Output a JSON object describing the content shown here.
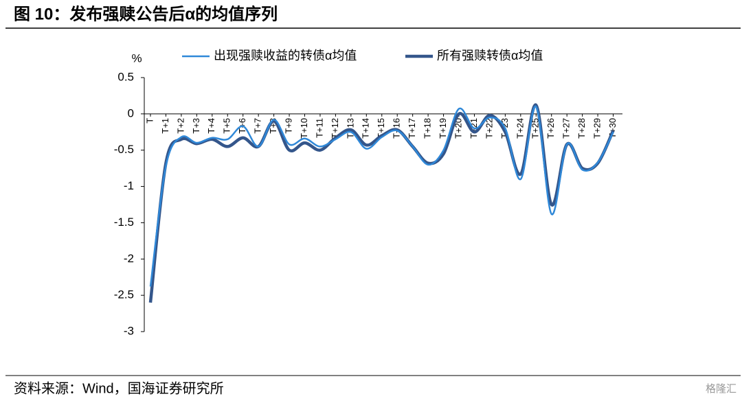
{
  "chart_data": {
    "type": "line",
    "title": "图 10：发布强赎公告后α的均值序列",
    "y_label": "%",
    "source": "资料来源：Wind，国海证券研究所",
    "watermark": "格隆汇",
    "categories": [
      "T",
      "T+1",
      "T+2",
      "T+3",
      "T+4",
      "T+5",
      "T+6",
      "T+7",
      "T+8",
      "T+9",
      "T+10",
      "T+11",
      "T+12",
      "T+13",
      "T+14",
      "T+15",
      "T+16",
      "T+17",
      "T+18",
      "T+19",
      "T+20",
      "T+21",
      "T+22",
      "T+23",
      "T+24",
      "T+25",
      "T+26",
      "T+27",
      "T+28",
      "T+29",
      "T+30"
    ],
    "series": [
      {
        "name": "出现强赎收益的转债α均值",
        "color": "#2f88d8",
        "values": [
          -2.38,
          -0.72,
          -0.32,
          -0.4,
          -0.33,
          -0.35,
          -0.17,
          -0.45,
          -0.08,
          -0.42,
          -0.34,
          -0.45,
          -0.35,
          -0.25,
          -0.48,
          -0.32,
          -0.23,
          -0.45,
          -0.7,
          -0.5,
          0.07,
          -0.2,
          -0.05,
          -0.2,
          -0.9,
          0.1,
          -1.38,
          -0.42,
          -0.77,
          -0.67,
          -0.25
        ]
      },
      {
        "name": "所有强赎转债α均值",
        "color": "#34568b",
        "values": [
          -2.6,
          -0.68,
          -0.35,
          -0.41,
          -0.35,
          -0.45,
          -0.33,
          -0.45,
          -0.1,
          -0.5,
          -0.4,
          -0.5,
          -0.33,
          -0.22,
          -0.43,
          -0.3,
          -0.22,
          -0.45,
          -0.68,
          -0.55,
          0.0,
          -0.25,
          -0.02,
          -0.25,
          -0.83,
          0.12,
          -1.25,
          -0.42,
          -0.75,
          -0.68,
          -0.23
        ]
      }
    ],
    "ylim": [
      -3,
      0.5
    ],
    "yticks": [
      0.5,
      0,
      -0.5,
      -1,
      -1.5,
      -2,
      -2.5,
      -3
    ]
  }
}
